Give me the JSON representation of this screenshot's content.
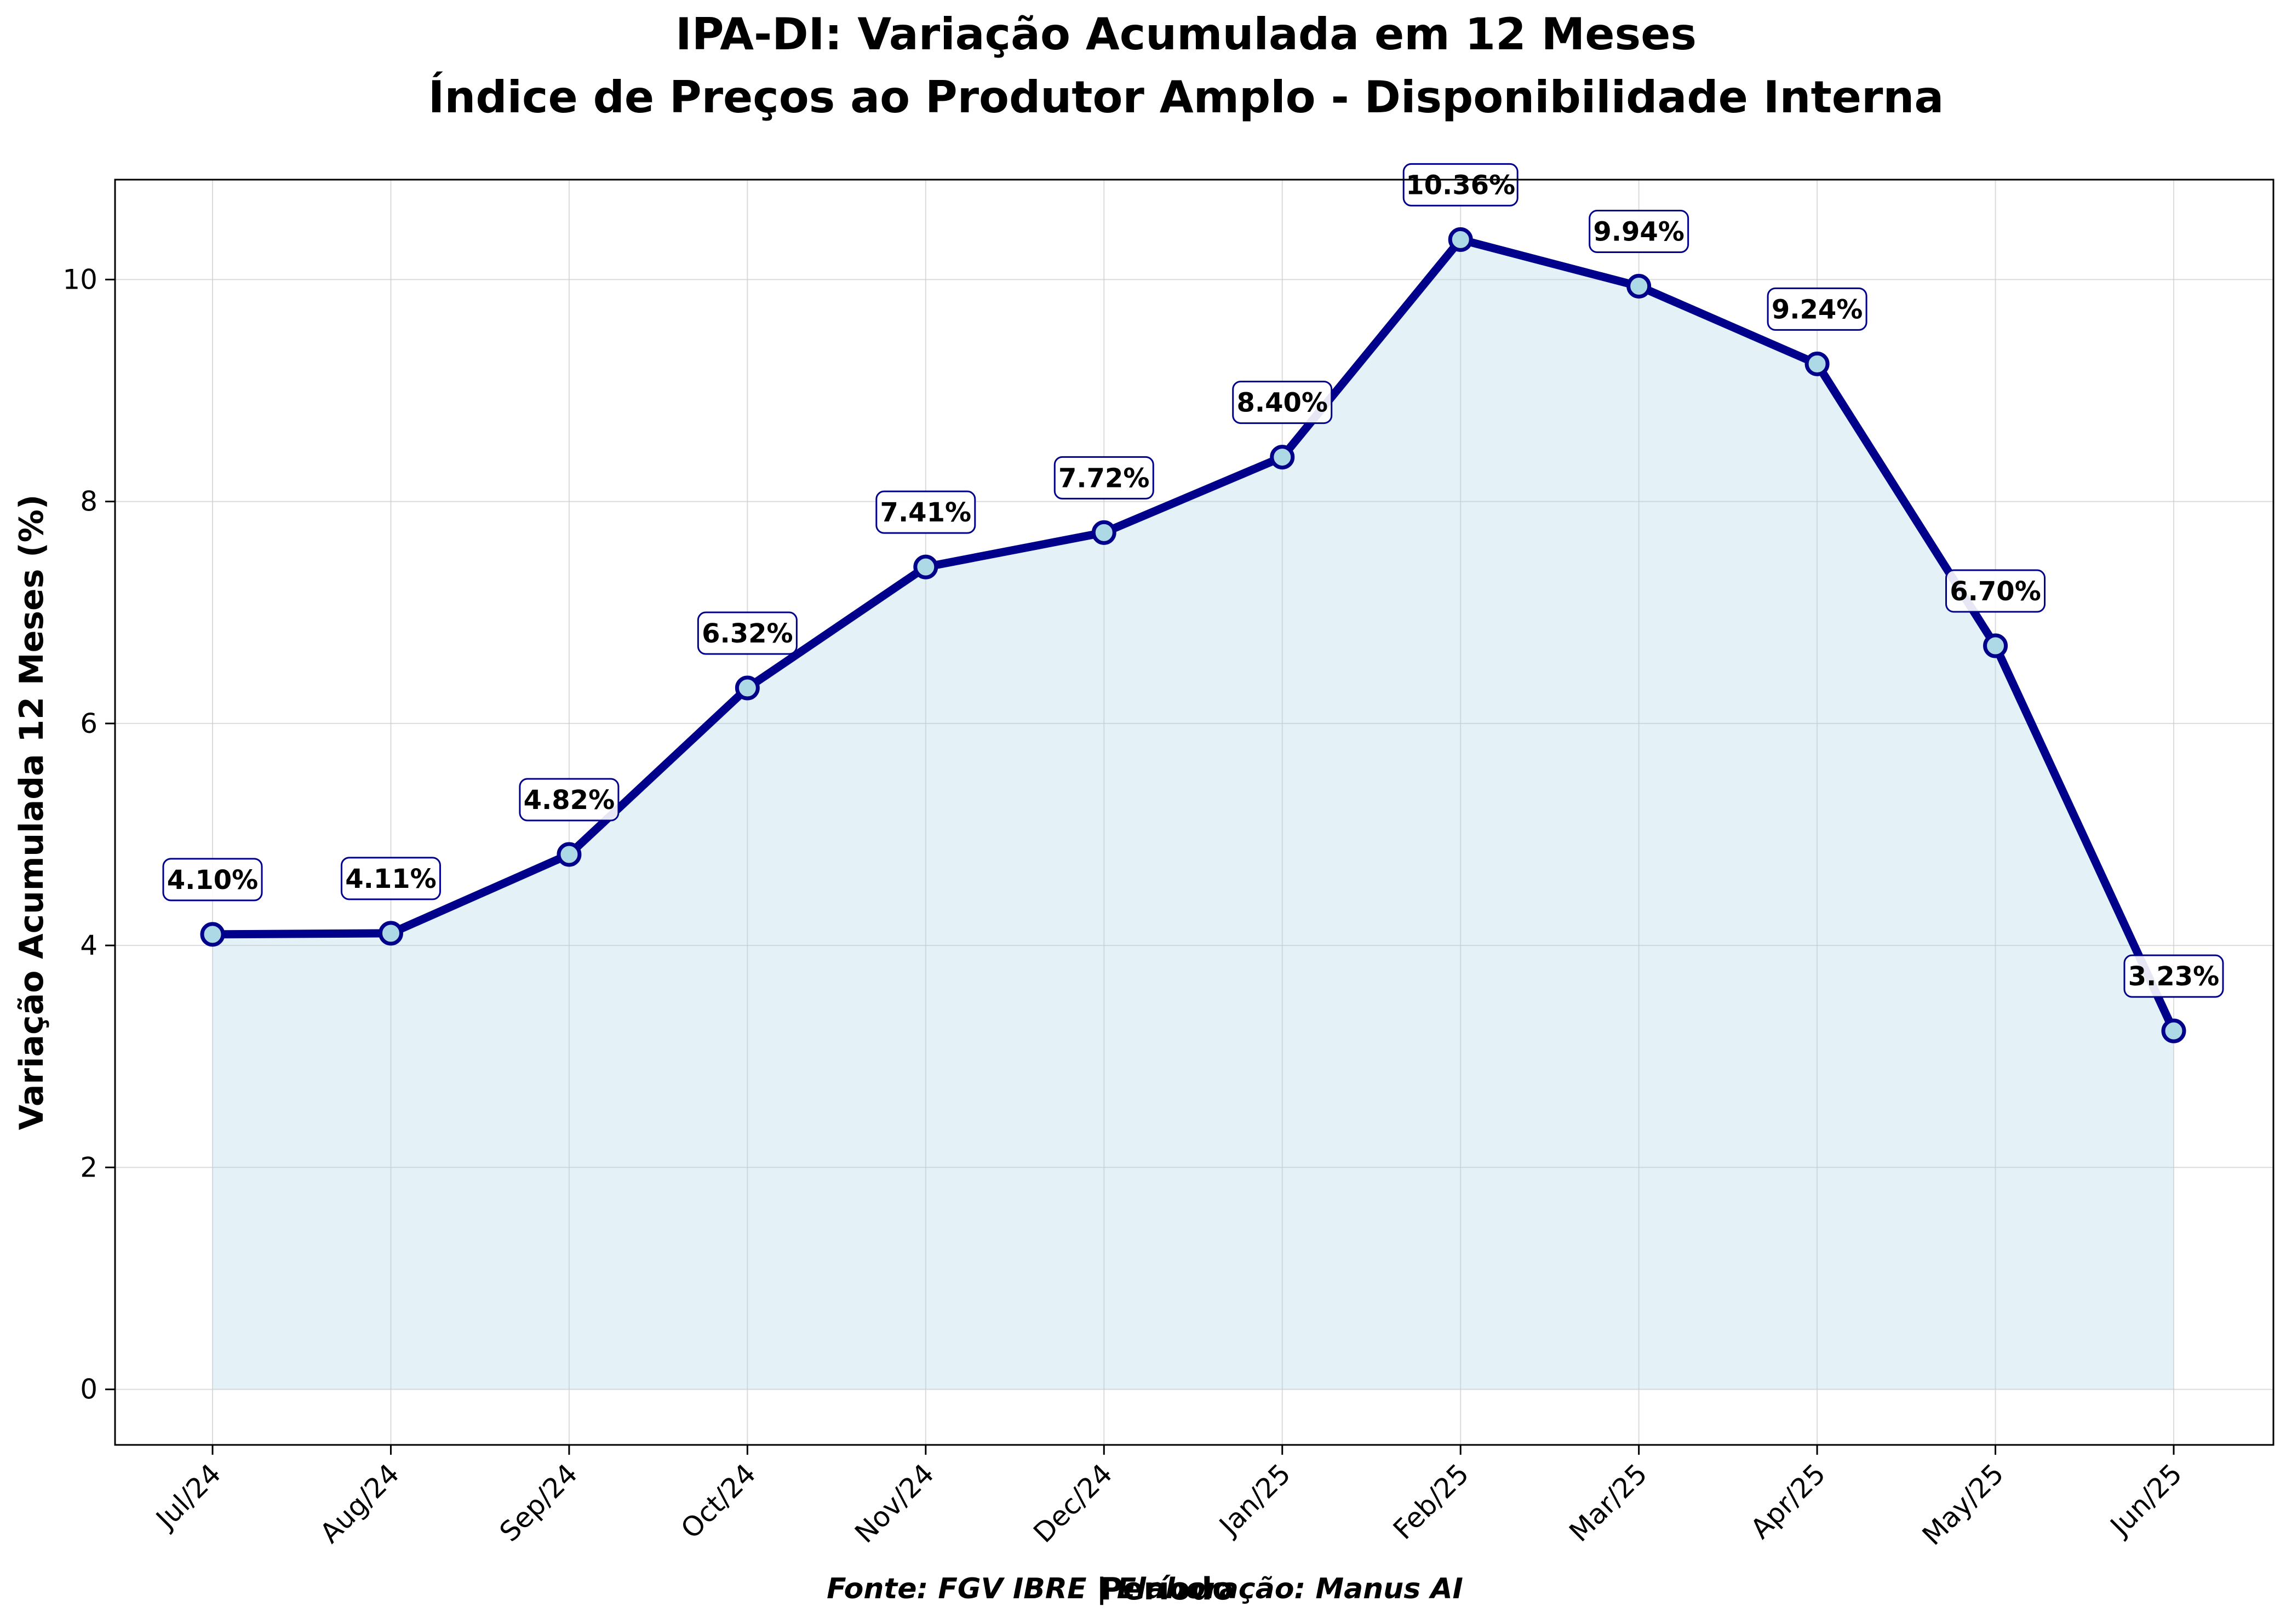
{
  "chart_data": {
    "type": "line",
    "title": "IPA-DI: Variação Acumulada em 12 Meses",
    "subtitle": "Índice de Preços ao Produtor Amplo - Disponibilidade Interna",
    "xlabel": "Período",
    "ylabel": "Variação Acumulada 12 Meses (%)",
    "categories": [
      "Jul/24",
      "Aug/24",
      "Sep/24",
      "Oct/24",
      "Nov/24",
      "Dec/24",
      "Jan/25",
      "Feb/25",
      "Mar/25",
      "Apr/25",
      "May/25",
      "Jun/25"
    ],
    "values": [
      4.1,
      4.11,
      4.82,
      6.32,
      7.41,
      7.72,
      8.4,
      10.36,
      9.94,
      9.24,
      6.7,
      3.23
    ],
    "data_labels": [
      "4.10%",
      "4.11%",
      "4.82%",
      "6.32%",
      "7.41%",
      "7.72%",
      "8.40%",
      "10.36%",
      "9.94%",
      "9.24%",
      "6.70%",
      "3.23%"
    ],
    "ylim": [
      -0.5,
      10.9
    ],
    "yticks": [
      0,
      2,
      4,
      6,
      8,
      10
    ],
    "grid": true,
    "area_fill": true,
    "colors": {
      "line": "#00008b",
      "marker_fill": "#add8e6",
      "area": "#add8e6",
      "label_box_border": "#00008b",
      "grid": "#cccccc"
    }
  },
  "footer": "Fonte: FGV IBRE | Elaboração: Manus AI"
}
